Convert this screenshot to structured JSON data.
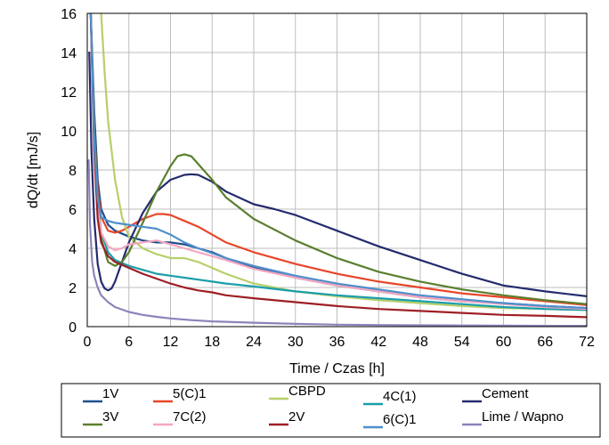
{
  "chart_data": {
    "type": "line",
    "title": "",
    "xlabel": "Time / Czas [h]",
    "ylabel": "dQ/dt [mJ/s]",
    "xlim": [
      0,
      72
    ],
    "ylim": [
      0,
      16
    ],
    "xticks": [
      0,
      6,
      12,
      18,
      24,
      30,
      36,
      42,
      48,
      54,
      60,
      66,
      72
    ],
    "yticks": [
      0,
      2,
      4,
      6,
      8,
      10,
      12,
      14,
      16
    ],
    "grid": true,
    "legend_position": "bottom",
    "series": [
      {
        "name": "1V",
        "color": "#1f4e8c",
        "x": [
          0.5,
          1,
          1.5,
          2,
          3,
          4,
          6,
          8,
          10,
          12,
          14,
          16,
          18,
          20,
          24,
          30,
          36,
          42,
          48,
          54,
          60,
          66,
          72
        ],
        "y": [
          16,
          11,
          7.5,
          6.0,
          5.2,
          4.9,
          4.6,
          4.4,
          4.3,
          4.3,
          4.2,
          4.0,
          3.8,
          3.5,
          3.0,
          2.5,
          2.1,
          1.8,
          1.5,
          1.3,
          1.2,
          1.05,
          0.95
        ]
      },
      {
        "name": "5(C)1",
        "color": "#e8462a",
        "x": [
          0.5,
          1,
          1.5,
          2,
          3,
          4,
          5,
          6,
          8,
          10,
          11,
          12,
          14,
          16,
          18,
          20,
          24,
          30,
          36,
          42,
          48,
          54,
          60,
          66,
          72
        ],
        "y": [
          16,
          10,
          7,
          5.6,
          4.9,
          4.8,
          4.9,
          5.1,
          5.5,
          5.75,
          5.75,
          5.7,
          5.4,
          5.1,
          4.7,
          4.3,
          3.8,
          3.2,
          2.7,
          2.3,
          2.0,
          1.7,
          1.5,
          1.3,
          1.1
        ]
      },
      {
        "name": "CBPD",
        "color": "#b7cf6a",
        "x": [
          2,
          2.5,
          3,
          4,
          5,
          6,
          8,
          10,
          12,
          14,
          16,
          18,
          20,
          24,
          30,
          36,
          42,
          48,
          54,
          60,
          66,
          72
        ],
        "y": [
          16,
          13,
          10.5,
          7.5,
          5.6,
          4.6,
          4.0,
          3.7,
          3.5,
          3.5,
          3.3,
          3.0,
          2.7,
          2.2,
          1.8,
          1.55,
          1.35,
          1.2,
          1.05,
          0.95,
          0.9,
          0.85
        ]
      },
      {
        "name": "4C(1)",
        "color": "#1b9eab",
        "x": [
          0.5,
          1,
          1.5,
          2,
          3,
          4,
          6,
          8,
          10,
          12,
          14,
          16,
          18,
          20,
          24,
          30,
          36,
          42,
          48,
          54,
          60,
          66,
          72
        ],
        "y": [
          16,
          10,
          6.5,
          4.8,
          3.8,
          3.4,
          3.1,
          2.9,
          2.7,
          2.6,
          2.5,
          2.4,
          2.3,
          2.2,
          2.05,
          1.8,
          1.6,
          1.45,
          1.3,
          1.15,
          1.0,
          0.9,
          0.85
        ]
      },
      {
        "name": "Cement",
        "color": "#252a6e",
        "x": [
          0.3,
          0.6,
          1,
          1.5,
          2,
          2.5,
          3,
          3.5,
          4,
          5,
          6,
          8,
          10,
          12,
          14,
          15,
          16,
          18,
          20,
          24,
          27,
          30,
          36,
          42,
          48,
          54,
          60,
          66,
          72
        ],
        "y": [
          14,
          9,
          5.5,
          3.2,
          2.3,
          1.95,
          1.85,
          1.95,
          2.3,
          3.3,
          4.3,
          5.8,
          6.9,
          7.5,
          7.75,
          7.78,
          7.75,
          7.4,
          6.9,
          6.25,
          6.0,
          5.7,
          4.9,
          4.1,
          3.4,
          2.7,
          2.1,
          1.8,
          1.55
        ]
      },
      {
        "name": "3V",
        "color": "#5a7f2e",
        "x": [
          0.5,
          1,
          1.5,
          2,
          3,
          4,
          5,
          6,
          8,
          10,
          12,
          13,
          14,
          15,
          16,
          18,
          20,
          24,
          30,
          36,
          42,
          48,
          54,
          60,
          66,
          72
        ],
        "y": [
          16,
          10,
          6.5,
          4.5,
          3.3,
          3.1,
          3.3,
          3.8,
          5.3,
          6.9,
          8.2,
          8.7,
          8.8,
          8.7,
          8.3,
          7.5,
          6.6,
          5.5,
          4.4,
          3.5,
          2.8,
          2.3,
          1.9,
          1.6,
          1.35,
          1.15
        ]
      },
      {
        "name": "7C(2)",
        "color": "#f4a7c0",
        "x": [
          0.5,
          1,
          1.5,
          2,
          3,
          4,
          5,
          6,
          8,
          10,
          12,
          14,
          16,
          18,
          20,
          24,
          30,
          36,
          42,
          48,
          54,
          60,
          66,
          72
        ],
        "y": [
          16,
          9,
          6,
          4.8,
          4.1,
          3.9,
          4.0,
          4.2,
          4.3,
          4.4,
          4.2,
          4.0,
          3.8,
          3.6,
          3.4,
          2.95,
          2.5,
          2.1,
          1.8,
          1.5,
          1.3,
          1.15,
          1.0,
          0.9
        ]
      },
      {
        "name": "2V",
        "color": "#9e1f25",
        "x": [
          0.5,
          1,
          1.5,
          2,
          3,
          4,
          6,
          8,
          10,
          12,
          14,
          16,
          18,
          20,
          24,
          30,
          36,
          42,
          48,
          54,
          60,
          66,
          72
        ],
        "y": [
          16,
          9,
          5.5,
          4.3,
          3.6,
          3.3,
          3.0,
          2.7,
          2.45,
          2.2,
          2.0,
          1.85,
          1.75,
          1.6,
          1.45,
          1.25,
          1.05,
          0.9,
          0.8,
          0.7,
          0.6,
          0.55,
          0.48
        ]
      },
      {
        "name": "6(C)1",
        "color": "#4f8fcc",
        "x": [
          0.5,
          1,
          1.5,
          2,
          3,
          4,
          6,
          8,
          10,
          12,
          14,
          16,
          18,
          20,
          24,
          30,
          36,
          42,
          48,
          54,
          60,
          66,
          72
        ],
        "y": [
          16,
          9.5,
          6.5,
          5.6,
          5.4,
          5.3,
          5.2,
          5.1,
          5.0,
          4.7,
          4.3,
          4.0,
          3.75,
          3.5,
          3.1,
          2.6,
          2.2,
          1.9,
          1.6,
          1.4,
          1.2,
          1.05,
          0.95
        ]
      },
      {
        "name": "Lime / Wapno",
        "color": "#8d83bb",
        "x": [
          0.2,
          0.4,
          0.7,
          1,
          1.5,
          2,
          3,
          4,
          6,
          8,
          10,
          12,
          15,
          18,
          24,
          30,
          36,
          42,
          48,
          54,
          60,
          66,
          72
        ],
        "y": [
          8.5,
          5.2,
          3.3,
          2.6,
          2.0,
          1.6,
          1.25,
          1.0,
          0.75,
          0.6,
          0.5,
          0.42,
          0.33,
          0.27,
          0.2,
          0.14,
          0.1,
          0.08,
          0.07,
          0.06,
          0.05,
          0.04,
          0.04
        ]
      }
    ]
  }
}
